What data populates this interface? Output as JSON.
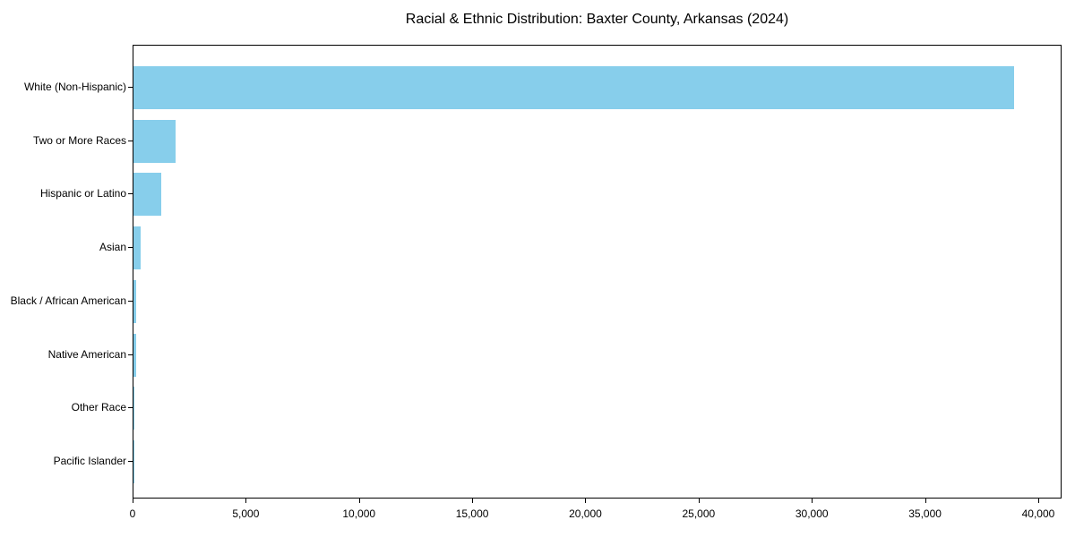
{
  "page": {
    "background_color": "#ffffff",
    "text_color": "#000000"
  },
  "chart_data": {
    "type": "bar",
    "orientation": "horizontal",
    "title": "Racial & Ethnic Distribution: Baxter County, Arkansas (2024)",
    "categories": [
      "White (Non-Hispanic)",
      "Two or More Races",
      "Hispanic or Latino",
      "Asian",
      "Black / African American",
      "Native American",
      "Other Race",
      "Pacific Islander"
    ],
    "values": [
      38900,
      1840,
      1220,
      310,
      130,
      120,
      25,
      10
    ],
    "xlabel": "",
    "ylabel": "",
    "xlim": [
      0,
      40950
    ],
    "xticks": [
      0,
      5000,
      10000,
      15000,
      20000,
      25000,
      30000,
      35000,
      40000
    ],
    "xtick_labels": [
      "0",
      "5,000",
      "10,000",
      "15,000",
      "20,000",
      "25,000",
      "30,000",
      "35,000",
      "40,000"
    ],
    "bar_color": "#87CEEB",
    "axis_color": "#000000",
    "grid": false,
    "legend": "none",
    "sort_order": "descending"
  }
}
